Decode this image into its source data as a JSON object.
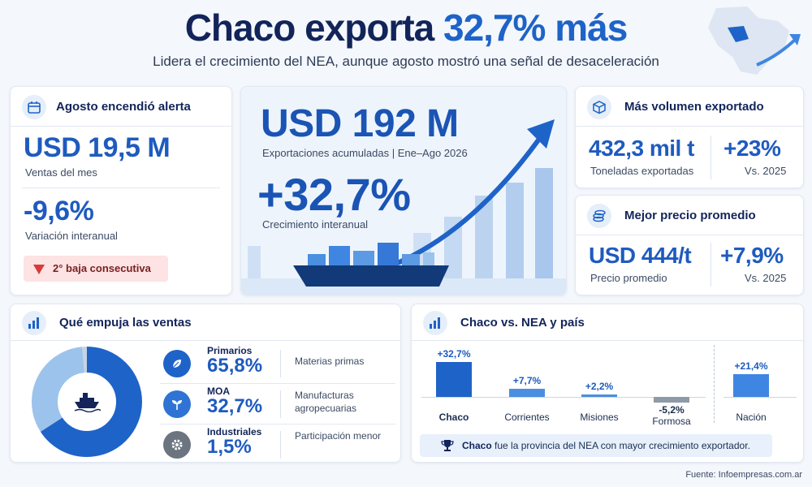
{
  "header": {
    "title_part1": "Chaco exporta",
    "title_part2": "32,7% más",
    "subtitle": "Lidera el crecimiento del NEA, aunque agosto mostró una señal de desaceleración"
  },
  "august": {
    "title": "Agosto encendió alerta",
    "sales_value": "USD 19,5 M",
    "sales_label": "Ventas del mes",
    "variation_value": "-9,6%",
    "variation_label": "Variación interanual",
    "alert": "2° baja consecutiva"
  },
  "hero": {
    "value": "USD 192 M",
    "value_label": "Exportaciones acumuladas | Ene–Ago 2026",
    "growth": "+32,7%",
    "growth_label": "Crecimiento interanual"
  },
  "volume": {
    "title": "Más volumen exportado",
    "value": "432,3 mil t",
    "value_label": "Toneladas exportadas",
    "change": "+23%",
    "change_label": "Vs. 2025"
  },
  "price": {
    "title": "Mejor precio promedio",
    "value": "USD 444/t",
    "value_label": "Precio promedio",
    "change": "+7,9%",
    "change_label": "Vs. 2025"
  },
  "drivers": {
    "title": "Qué empuja las ventas",
    "items": [
      {
        "name": "Primarios",
        "pct": "65,8%",
        "pct_value": 65.8,
        "desc": "Materias primas",
        "icon": "leaf-icon"
      },
      {
        "name": "MOA",
        "pct": "32,7%",
        "pct_value": 32.7,
        "desc": "Manufacturas agropecuarias",
        "icon": "sprout-icon"
      },
      {
        "name": "Industriales",
        "pct": "1,5%",
        "pct_value": 1.5,
        "desc": "Participación menor",
        "icon": "gear-icon"
      }
    ],
    "colors": [
      "#1e63c8",
      "#9cc3ec",
      "#c7d3e1"
    ]
  },
  "comparison": {
    "title": "Chaco vs. NEA y país",
    "bars": [
      {
        "label": "Chaco",
        "value": 32.7,
        "text": "+32,7%",
        "color": "#1e63c8"
      },
      {
        "label": "Corrientes",
        "value": 7.7,
        "text": "+7,7%",
        "color": "#4a8fe0"
      },
      {
        "label": "Misiones",
        "value": 2.2,
        "text": "+2,2%",
        "color": "#4a8fe0"
      },
      {
        "label": "Formosa",
        "value": -5.2,
        "text": "-5,2%",
        "color": "#8f9aa8"
      },
      {
        "label": "Nación",
        "value": 21.4,
        "text": "+21,4%",
        "color": "#3f86e3"
      }
    ],
    "note_bold": "Chaco",
    "note_rest": "fue la provincia del NEA con mayor crecimiento exportador."
  },
  "source": "Fuente: Infoempresas.com.ar"
}
